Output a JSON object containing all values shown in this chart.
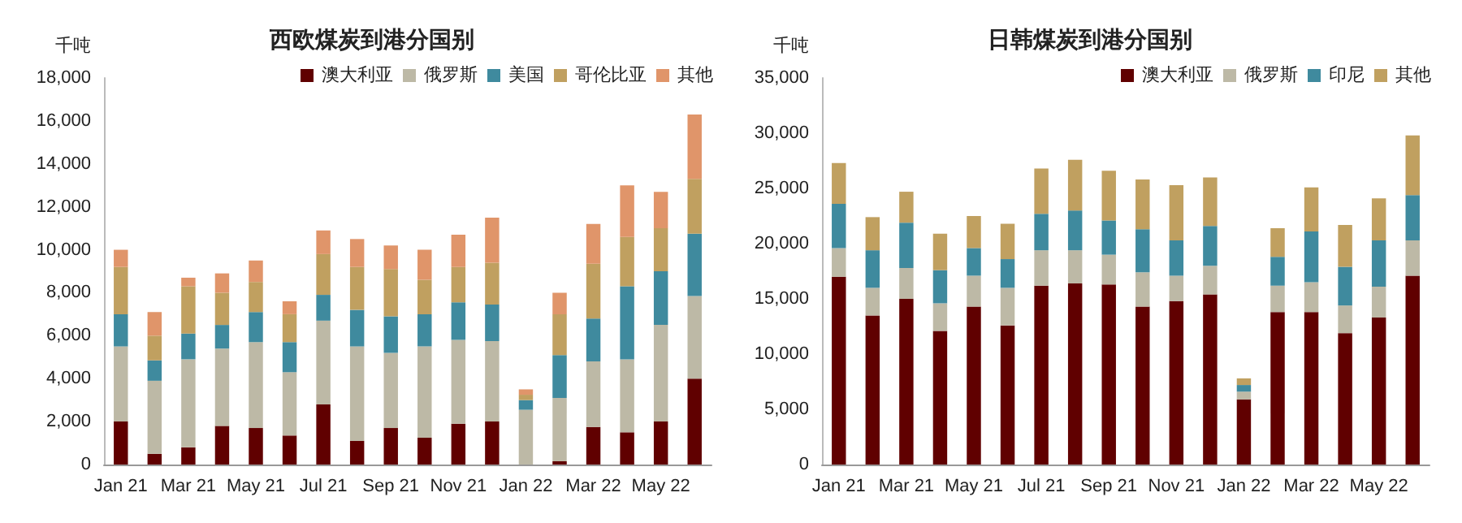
{
  "chart_data": [
    {
      "type": "bar",
      "title": "西欧煤炭到港分国别",
      "ylabel": "千吨",
      "stacked": true,
      "grid": false,
      "legend": "top right",
      "categories": [
        "Jan 21",
        null,
        "Mar 21",
        null,
        "May 21",
        null,
        "Jul 21",
        null,
        "Sep 21",
        null,
        "Nov 21",
        null,
        "Jan 22",
        null,
        "Mar 22",
        null,
        "May 22",
        null
      ],
      "ylim": [
        0,
        18000
      ],
      "yticks": [
        0,
        {
          "value": 2000,
          "label": "2,000"
        },
        {
          "value": 4000,
          "label": "4,000"
        },
        {
          "value": 6000,
          "label": "6,000"
        },
        {
          "value": 8000,
          "label": "8,000"
        },
        {
          "value": 10000,
          "label": "10,000"
        },
        {
          "value": 12000,
          "label": "12,000"
        },
        {
          "value": 14000,
          "label": "14,000"
        },
        {
          "value": 16000,
          "label": "16,000"
        },
        {
          "value": 18000,
          "label": "18,000"
        }
      ],
      "series": [
        {
          "name": "澳大利亚",
          "color": "#600000",
          "values": [
            2000,
            500,
            800,
            1800,
            1700,
            1350,
            2800,
            1100,
            1700,
            1250,
            1900,
            2000,
            0,
            150,
            1750,
            1500,
            2000,
            4000
          ]
        },
        {
          "name": "俄罗斯",
          "color": "#bdb9a6",
          "values": [
            3500,
            3400,
            4100,
            3600,
            4000,
            2950,
            3900,
            4400,
            3500,
            4250,
            3900,
            3750,
            2550,
            2950,
            3050,
            3400,
            4500,
            3850
          ]
        },
        {
          "name": "美国",
          "color": "#3f8a9e",
          "values": [
            1500,
            950,
            1200,
            1100,
            1400,
            1400,
            1200,
            1700,
            1700,
            1500,
            1750,
            1700,
            450,
            2000,
            2000,
            3400,
            2500,
            2900
          ]
        },
        {
          "name": "哥伦比亚",
          "color": "#c0a060",
          "values": [
            2200,
            1150,
            2200,
            1500,
            1400,
            1300,
            1900,
            2000,
            2200,
            1600,
            1650,
            1950,
            250,
            1900,
            2550,
            2300,
            2000,
            2550
          ]
        },
        {
          "name": "其他",
          "color": "#e0956a",
          "values": [
            800,
            1100,
            400,
            900,
            1000,
            600,
            1100,
            1300,
            1100,
            1400,
            1500,
            2100,
            250,
            1000,
            1850,
            2400,
            1700,
            3000
          ]
        }
      ]
    },
    {
      "type": "bar",
      "title": "日韩煤炭到港分国别",
      "ylabel": "千吨",
      "stacked": true,
      "grid": false,
      "legend": "top right",
      "categories": [
        "Jan 21",
        null,
        "Mar 21",
        null,
        "May 21",
        null,
        "Jul 21",
        null,
        "Sep 21",
        null,
        "Nov 21",
        null,
        "Jan 22",
        null,
        "Mar 22",
        null,
        "May 22",
        null
      ],
      "ylim": [
        0,
        35000
      ],
      "yticks": [
        0,
        {
          "value": 5000,
          "label": "5,000"
        },
        {
          "value": 10000,
          "label": "10,000"
        },
        {
          "value": 15000,
          "label": "15,000"
        },
        {
          "value": 20000,
          "label": "20,000"
        },
        {
          "value": 25000,
          "label": "25,000"
        },
        {
          "value": 30000,
          "label": "30,000"
        },
        {
          "value": 35000,
          "label": "35,000"
        }
      ],
      "series": [
        {
          "name": "澳大利亚",
          "color": "#600000",
          "values": [
            17000,
            13500,
            15000,
            12100,
            14300,
            12600,
            16200,
            16400,
            16300,
            14300,
            14800,
            15400,
            5900,
            13800,
            13800,
            11900,
            13300,
            17100
          ]
        },
        {
          "name": "俄罗斯",
          "color": "#bdb9a6",
          "values": [
            2600,
            2500,
            2800,
            2500,
            2800,
            3400,
            3200,
            3000,
            2700,
            3100,
            2300,
            2600,
            700,
            2400,
            2700,
            2500,
            2800,
            3200
          ]
        },
        {
          "name": "印尼",
          "color": "#3f8a9e",
          "values": [
            4000,
            3400,
            4100,
            3000,
            2500,
            2600,
            3300,
            3600,
            3100,
            3900,
            3200,
            3600,
            600,
            2600,
            4600,
            3500,
            4200,
            4100
          ]
        },
        {
          "name": "其他",
          "color": "#c0a060",
          "values": [
            3700,
            3000,
            2800,
            3300,
            2900,
            3200,
            4100,
            4600,
            4500,
            4500,
            5000,
            4400,
            600,
            2600,
            4000,
            3800,
            3800,
            5400
          ]
        }
      ]
    }
  ]
}
